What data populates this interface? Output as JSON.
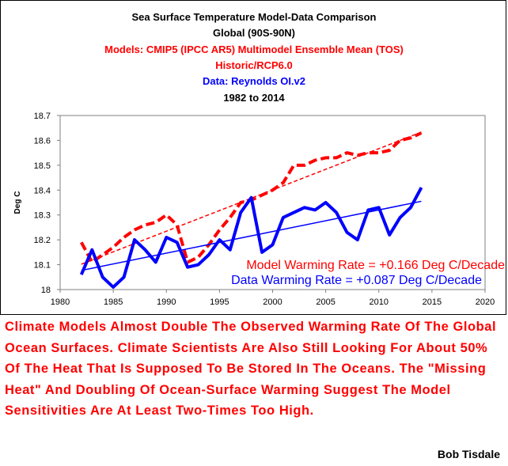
{
  "chart_data": {
    "type": "line",
    "title_lines": [
      {
        "text": "Sea Surface Temperature Model-Data Comparison",
        "color": "#000000"
      },
      {
        "text": "Global (90S-90N)",
        "color": "#000000"
      },
      {
        "text": "Models: CMIP5 (IPCC AR5) Multimodel Ensemble Mean (TOS)",
        "color": "#ff0000"
      },
      {
        "text": "Historic/RCP6.0",
        "color": "#ff0000"
      },
      {
        "text": "Data: Reynolds OI.v2",
        "color": "#0000ff"
      },
      {
        "text": "1982 to 2014",
        "color": "#000000"
      }
    ],
    "xlabel": "",
    "ylabel": "Deg C",
    "xlim": [
      1980,
      2020
    ],
    "ylim": [
      18,
      18.7
    ],
    "xticks": [
      1980,
      1985,
      1990,
      1995,
      2000,
      2005,
      2010,
      2015,
      2020
    ],
    "yticks": [
      18,
      18.1,
      18.2,
      18.3,
      18.4,
      18.5,
      18.6,
      18.7
    ],
    "series": [
      {
        "name": "Models: CMIP5 Multimodel Ensemble Mean (TOS)",
        "color": "#ff0000",
        "style": "dashed",
        "x": [
          1982,
          1983,
          1984,
          1985,
          1986,
          1987,
          1988,
          1989,
          1990,
          1991,
          1992,
          1993,
          1994,
          1995,
          1996,
          1997,
          1998,
          1999,
          2000,
          2001,
          2002,
          2003,
          2004,
          2005,
          2006,
          2007,
          2008,
          2009,
          2010,
          2011,
          2012,
          2013,
          2014
        ],
        "values": [
          18.19,
          18.11,
          18.14,
          18.17,
          18.21,
          18.24,
          18.26,
          18.27,
          18.3,
          18.26,
          18.11,
          18.13,
          18.18,
          18.24,
          18.29,
          18.35,
          18.36,
          18.38,
          18.4,
          18.43,
          18.5,
          18.5,
          18.52,
          18.53,
          18.53,
          18.55,
          18.54,
          18.55,
          18.55,
          18.56,
          18.6,
          18.61,
          18.63
        ],
        "trend": {
          "x": [
            1982,
            2014
          ],
          "values": [
            18.102,
            18.633
          ]
        }
      },
      {
        "name": "Data: Reynolds OI.v2",
        "color": "#0000ff",
        "style": "solid",
        "x": [
          1982,
          1983,
          1984,
          1985,
          1986,
          1987,
          1988,
          1989,
          1990,
          1991,
          1992,
          1993,
          1994,
          1995,
          1996,
          1997,
          1998,
          1999,
          2000,
          2001,
          2002,
          2003,
          2004,
          2005,
          2006,
          2007,
          2008,
          2009,
          2010,
          2011,
          2012,
          2013,
          2014
        ],
        "values": [
          18.06,
          18.16,
          18.05,
          18.01,
          18.05,
          18.2,
          18.16,
          18.11,
          18.21,
          18.19,
          18.09,
          18.1,
          18.14,
          18.2,
          18.16,
          18.31,
          18.37,
          18.15,
          18.18,
          18.29,
          18.31,
          18.33,
          18.32,
          18.35,
          18.31,
          18.23,
          18.2,
          18.32,
          18.33,
          18.22,
          18.29,
          18.33,
          18.41
        ],
        "trend": {
          "x": [
            1982,
            2014
          ],
          "values": [
            18.077,
            18.355
          ]
        }
      }
    ],
    "annotations": [
      {
        "text": "Model Warming Rate = +0.166 Deg C/Decade",
        "color": "#ff0000"
      },
      {
        "text": "Data Warming Rate = +0.087 Deg C/Decade",
        "color": "#0000ff"
      }
    ]
  },
  "commentary": "Climate Models Almost Double The Observed Warming Rate Of The Global Ocean Surfaces. Climate Scientists Are Also Still Looking For About 50% Of The Heat That Is Supposed To Be Stored In The Oceans.  The \"Missing Heat\" And Doubling Of Ocean-Surface Warming Suggest The Model Sensitivities Are At Least Two-Times Too High.",
  "author": "Bob Tisdale"
}
